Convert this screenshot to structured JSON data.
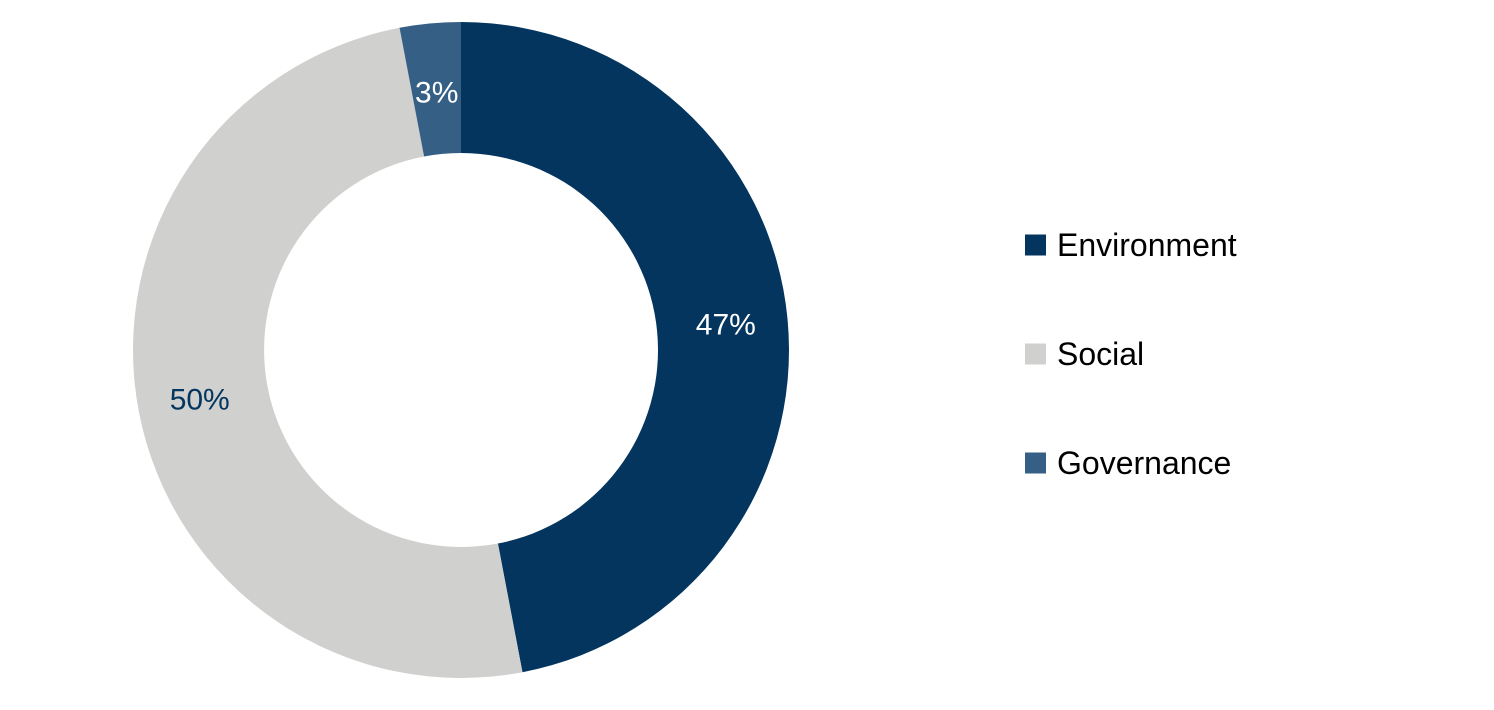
{
  "chart_data": {
    "type": "pie",
    "variant": "donut",
    "title": "",
    "categories": [
      "Environment",
      "Social",
      "Governance"
    ],
    "values": [
      47,
      50,
      3
    ],
    "data_labels": [
      "47%",
      "50%",
      "3%"
    ],
    "colors": [
      "#03355f",
      "#d0d0cf",
      "#365f86"
    ],
    "label_colors": [
      "#ffffff",
      "#03355f",
      "#ffffff"
    ],
    "legend": {
      "placement": "right",
      "entries": [
        "Environment",
        "Social",
        "Governance"
      ]
    }
  }
}
